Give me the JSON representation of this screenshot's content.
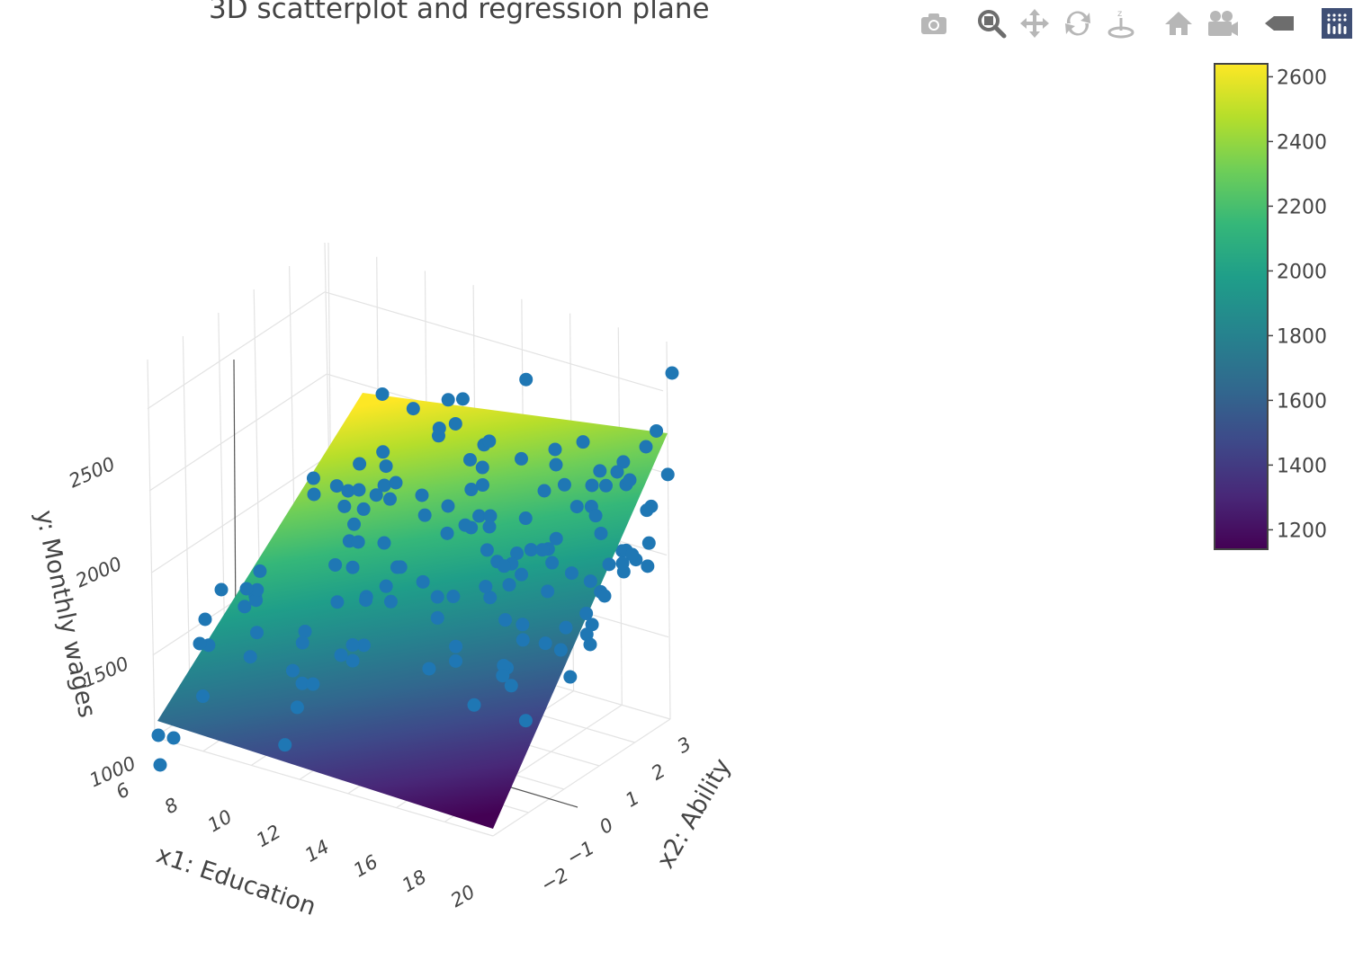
{
  "chart_data": {
    "type": "scatter",
    "title": "3D scatterplot and regression plane",
    "x_axis": {
      "label": "x1: Education",
      "ticks": [
        6,
        8,
        10,
        12,
        14,
        16,
        18,
        20
      ],
      "range": [
        5.5,
        20.5
      ]
    },
    "y_axis": {
      "label": "x2: Ability",
      "ticks": [
        -2,
        -1,
        0,
        1,
        2,
        3
      ],
      "range": [
        -2.5,
        3.5
      ]
    },
    "z_axis": {
      "label": "y: Monthly wages",
      "ticks": [
        1000,
        1500,
        2000,
        2500
      ],
      "range": [
        800,
        2900
      ]
    },
    "plane": {
      "type": "surface",
      "z_min": 1150,
      "z_max": 2630,
      "colorscale": "viridis"
    },
    "colorbar": {
      "ticks": [
        1200,
        1400,
        1600,
        1800,
        2000,
        2200,
        2400,
        2600
      ],
      "range": [
        1140,
        2640
      ],
      "position": "right"
    },
    "marker_color": "#1f77b4",
    "points_note": "approx. 200 observations scattered around the regression plane",
    "grid": true
  },
  "modebar": {
    "buttons": [
      {
        "name": "camera-icon"
      },
      {
        "name": "zoom-icon"
      },
      {
        "name": "pan-icon"
      },
      {
        "name": "orbit-rotate-icon"
      },
      {
        "name": "turntable-rotate-icon"
      },
      {
        "name": "home-icon"
      },
      {
        "name": "reset-camera-icon"
      },
      {
        "name": "toggle-hover-icon"
      },
      {
        "name": "plotly-logo-icon"
      }
    ],
    "icon_color": "#b7b7b7",
    "active_color": "#6d6d6d",
    "logo_bg": "#3f4f75"
  }
}
